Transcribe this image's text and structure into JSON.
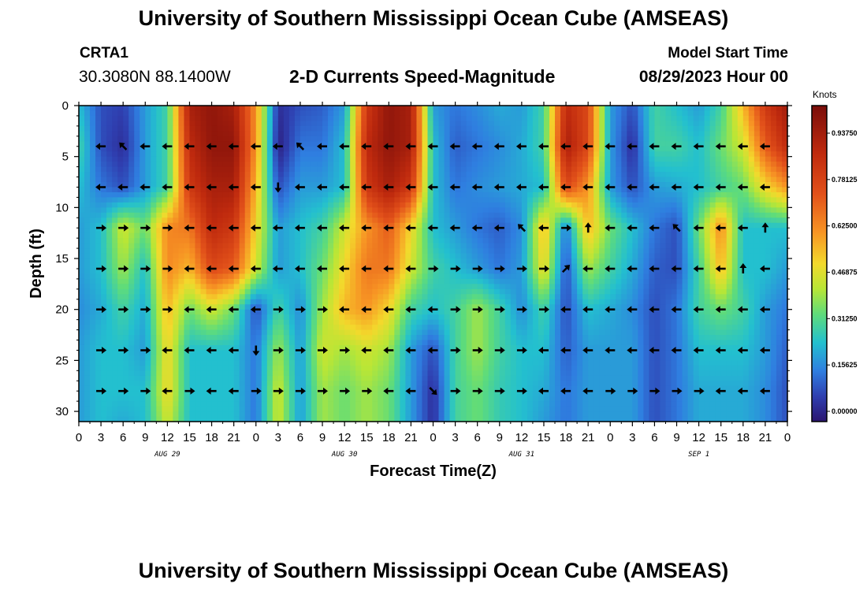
{
  "header": {
    "title": "University of Southern Mississippi Ocean Cube (AMSEAS)",
    "station": "CRTA1",
    "coords": "30.3080N  88.1400W",
    "subtitle": "2-D Currents Speed-Magnitude",
    "model_start_label": "Model Start Time",
    "model_start_value": "08/29/2023 Hour 00"
  },
  "footer": {
    "title": "University of Southern Mississippi Ocean Cube (AMSEAS)"
  },
  "chart_data": {
    "type": "heatmap",
    "title": "2-D Currents Speed-Magnitude",
    "xlabel": "Forecast Time(Z)",
    "ylabel": "Depth (ft)",
    "x_ticks": [
      "0",
      "3",
      "6",
      "9",
      "12",
      "15",
      "18",
      "21",
      "0",
      "3",
      "6",
      "9",
      "12",
      "15",
      "18",
      "21",
      "0",
      "3",
      "6",
      "9",
      "12",
      "15",
      "18",
      "21",
      "0",
      "3",
      "6",
      "9",
      "12",
      "15",
      "18",
      "21",
      "0"
    ],
    "x_range_hours": [
      0,
      96
    ],
    "date_labels": [
      {
        "text": "AUG 29",
        "hour": 12
      },
      {
        "text": "AUG 30",
        "hour": 36
      },
      {
        "text": "AUG 31",
        "hour": 60
      },
      {
        "text": "SEP 1",
        "hour": 84
      }
    ],
    "y_ticks": [
      "0",
      "5",
      "10",
      "15",
      "20",
      "25",
      "30"
    ],
    "y_range_ft": [
      0,
      31
    ],
    "colorbar": {
      "title": "Knots",
      "range": [
        0,
        1.0
      ],
      "labels": [
        "0.00000",
        "0.15625",
        "0.31250",
        "0.46875",
        "0.62500",
        "0.78125",
        "0.93750"
      ],
      "label_values": [
        0,
        0.15625,
        0.3125,
        0.46875,
        0.625,
        0.78125,
        0.9375
      ]
    },
    "vector_depths_ft": [
      4,
      8,
      12,
      16,
      20,
      24,
      28
    ],
    "vector_step_hours": 3,
    "speed_grid": {
      "hours": [
        0,
        3,
        6,
        9,
        12,
        15,
        18,
        21,
        24,
        27,
        30,
        33,
        36,
        39,
        42,
        45,
        48,
        51,
        54,
        57,
        60,
        63,
        66,
        69,
        72,
        75,
        78,
        81,
        84,
        87,
        90,
        93,
        96
      ],
      "depths_ft": [
        0,
        4,
        8,
        12,
        16,
        20,
        24,
        28,
        31
      ],
      "values": [
        [
          0.25,
          0.1,
          0.08,
          0.2,
          0.3,
          0.9,
          0.95,
          0.9,
          0.6,
          0.05,
          0.1,
          0.12,
          0.2,
          0.8,
          0.95,
          0.9,
          0.2,
          0.15,
          0.18,
          0.22,
          0.2,
          0.3,
          0.85,
          0.75,
          0.2,
          0.1,
          0.3,
          0.25,
          0.2,
          0.3,
          0.55,
          0.8,
          0.92
        ],
        [
          0.3,
          0.1,
          0.05,
          0.2,
          0.3,
          0.85,
          0.95,
          0.95,
          0.6,
          0.02,
          0.15,
          0.15,
          0.25,
          0.85,
          0.95,
          0.9,
          0.25,
          0.12,
          0.15,
          0.18,
          0.22,
          0.3,
          0.9,
          0.75,
          0.2,
          0.05,
          0.3,
          0.3,
          0.25,
          0.35,
          0.45,
          0.7,
          0.85
        ],
        [
          0.25,
          0.15,
          0.1,
          0.2,
          0.3,
          0.8,
          0.9,
          0.9,
          0.55,
          0.1,
          0.2,
          0.2,
          0.25,
          0.8,
          0.9,
          0.8,
          0.25,
          0.15,
          0.18,
          0.2,
          0.22,
          0.25,
          0.75,
          0.6,
          0.2,
          0.1,
          0.2,
          0.22,
          0.25,
          0.3,
          0.35,
          0.5,
          0.6
        ],
        [
          0.2,
          0.25,
          0.45,
          0.35,
          0.62,
          0.65,
          0.85,
          0.8,
          0.5,
          0.2,
          0.25,
          0.3,
          0.45,
          0.6,
          0.7,
          0.5,
          0.25,
          0.2,
          0.15,
          0.12,
          0.18,
          0.55,
          0.15,
          0.55,
          0.35,
          0.25,
          0.15,
          0.1,
          0.35,
          0.62,
          0.25,
          0.25,
          0.25
        ],
        [
          0.2,
          0.25,
          0.4,
          0.25,
          0.62,
          0.55,
          0.75,
          0.7,
          0.45,
          0.2,
          0.25,
          0.35,
          0.5,
          0.65,
          0.65,
          0.45,
          0.3,
          0.25,
          0.2,
          0.15,
          0.2,
          0.5,
          0.1,
          0.4,
          0.3,
          0.22,
          0.12,
          0.1,
          0.3,
          0.55,
          0.25,
          0.25,
          0.2
        ],
        [
          0.18,
          0.22,
          0.3,
          0.22,
          0.55,
          0.35,
          0.45,
          0.35,
          0.1,
          0.3,
          0.18,
          0.4,
          0.55,
          0.6,
          0.5,
          0.3,
          0.25,
          0.3,
          0.4,
          0.3,
          0.18,
          0.3,
          0.1,
          0.25,
          0.22,
          0.18,
          0.1,
          0.15,
          0.3,
          0.35,
          0.3,
          0.2,
          0.15
        ],
        [
          0.2,
          0.25,
          0.25,
          0.2,
          0.5,
          0.25,
          0.25,
          0.25,
          0.15,
          0.4,
          0.2,
          0.45,
          0.4,
          0.45,
          0.4,
          0.2,
          0.1,
          0.3,
          0.4,
          0.3,
          0.25,
          0.25,
          0.12,
          0.2,
          0.2,
          0.2,
          0.1,
          0.15,
          0.25,
          0.25,
          0.25,
          0.2,
          0.12
        ],
        [
          0.2,
          0.25,
          0.25,
          0.25,
          0.5,
          0.25,
          0.25,
          0.25,
          0.15,
          0.45,
          0.2,
          0.4,
          0.35,
          0.4,
          0.35,
          0.2,
          0.05,
          0.3,
          0.35,
          0.28,
          0.25,
          0.22,
          0.15,
          0.2,
          0.2,
          0.2,
          0.1,
          0.15,
          0.22,
          0.22,
          0.22,
          0.18,
          0.1
        ],
        [
          0.2,
          0.25,
          0.22,
          0.25,
          0.45,
          0.25,
          0.25,
          0.25,
          0.15,
          0.45,
          0.2,
          0.4,
          0.35,
          0.4,
          0.35,
          0.2,
          0.05,
          0.3,
          0.35,
          0.28,
          0.25,
          0.2,
          0.15,
          0.2,
          0.2,
          0.2,
          0.1,
          0.15,
          0.22,
          0.22,
          0.22,
          0.18,
          0.1
        ]
      ]
    },
    "vector_directions": [
      [
        "W",
        "W",
        "NW",
        "W",
        "W",
        "W",
        "W",
        "W",
        "W",
        "W",
        "NW",
        "W",
        "W",
        "W",
        "W",
        "W",
        "W",
        "W",
        "W",
        "W",
        "W",
        "W",
        "W",
        "W",
        "W",
        "W",
        "W",
        "W",
        "W",
        "W",
        "W",
        "W",
        "W"
      ],
      [
        "W",
        "W",
        "W",
        "W",
        "W",
        "W",
        "W",
        "W",
        "W",
        "S",
        "W",
        "W",
        "W",
        "W",
        "W",
        "W",
        "W",
        "W",
        "W",
        "W",
        "W",
        "W",
        "W",
        "W",
        "W",
        "W",
        "W",
        "W",
        "W",
        "W",
        "W",
        "W",
        "W"
      ],
      [
        "E",
        "E",
        "E",
        "E",
        "E",
        "W",
        "W",
        "W",
        "W",
        "W",
        "W",
        "W",
        "W",
        "W",
        "W",
        "W",
        "W",
        "W",
        "W",
        "W",
        "NW",
        "W",
        "E",
        "N",
        "W",
        "W",
        "W",
        "NW",
        "W",
        "W",
        "W",
        "N",
        "E"
      ],
      [
        "E",
        "E",
        "E",
        "E",
        "E",
        "W",
        "W",
        "W",
        "W",
        "W",
        "W",
        "W",
        "W",
        "W",
        "W",
        "W",
        "E",
        "E",
        "E",
        "E",
        "E",
        "E",
        "NE",
        "W",
        "W",
        "W",
        "W",
        "W",
        "W",
        "W",
        "N",
        "W",
        "W"
      ],
      [
        "E",
        "E",
        "E",
        "E",
        "E",
        "W",
        "W",
        "W",
        "W",
        "E",
        "E",
        "E",
        "W",
        "W",
        "W",
        "W",
        "W",
        "E",
        "E",
        "E",
        "E",
        "E",
        "W",
        "W",
        "W",
        "W",
        "W",
        "W",
        "W",
        "W",
        "W",
        "W",
        "W"
      ],
      [
        "E",
        "E",
        "E",
        "E",
        "W",
        "W",
        "W",
        "W",
        "S",
        "E",
        "E",
        "E",
        "E",
        "W",
        "W",
        "W",
        "W",
        "E",
        "E",
        "E",
        "E",
        "W",
        "W",
        "W",
        "W",
        "W",
        "W",
        "W",
        "W",
        "W",
        "W",
        "W",
        "W"
      ],
      [
        "E",
        "E",
        "E",
        "E",
        "W",
        "E",
        "W",
        "W",
        "E",
        "E",
        "E",
        "E",
        "E",
        "E",
        "W",
        "W",
        "SE",
        "E",
        "E",
        "E",
        "E",
        "W",
        "W",
        "W",
        "E",
        "E",
        "E",
        "E",
        "E",
        "W",
        "W",
        "W",
        "W"
      ]
    ]
  }
}
